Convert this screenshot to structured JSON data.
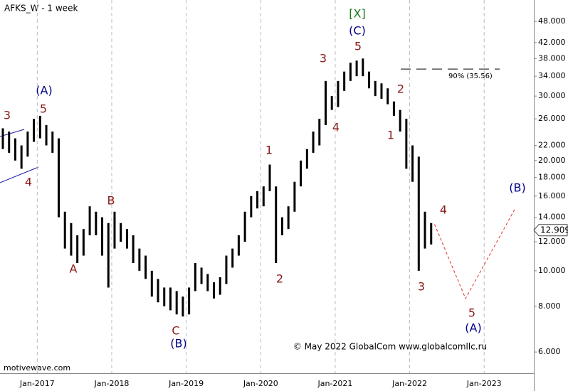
{
  "chart_data": {
    "type": "ohlc",
    "title": "AFKS_W - 1 week",
    "watermark": "motivewave.com",
    "copyright": "© May 2022 GlobalCom www.globalcomllc.ru",
    "color": "#000000",
    "log_scale": true,
    "grid": true,
    "x": [
      "2016-07",
      "2016-08",
      "2016-09",
      "2016-10",
      "2016-11",
      "2016-12",
      "2017-01",
      "2017-02",
      "2017-03",
      "2017-04",
      "2017-05",
      "2017-06",
      "2017-07",
      "2017-08",
      "2017-09",
      "2017-10",
      "2017-11",
      "2017-12",
      "2018-01",
      "2018-02",
      "2018-03",
      "2018-04",
      "2018-05",
      "2018-06",
      "2018-07",
      "2018-08",
      "2018-09",
      "2018-10",
      "2018-11",
      "2018-12",
      "2019-01",
      "2019-02",
      "2019-03",
      "2019-04",
      "2019-05",
      "2019-06",
      "2019-07",
      "2019-08",
      "2019-09",
      "2019-10",
      "2019-11",
      "2019-12",
      "2020-01",
      "2020-02",
      "2020-03",
      "2020-04",
      "2020-05",
      "2020-06",
      "2020-07",
      "2020-08",
      "2020-09",
      "2020-10",
      "2020-11",
      "2020-12",
      "2021-01",
      "2021-02",
      "2021-03",
      "2021-04",
      "2021-05",
      "2021-06",
      "2021-07",
      "2021-08",
      "2021-09",
      "2021-10",
      "2021-11",
      "2021-12",
      "2022-01",
      "2022-02",
      "2022-03",
      "2022-04"
    ],
    "high": [
      24.5,
      24,
      23,
      22,
      24,
      26,
      26.5,
      25,
      24,
      23,
      14.5,
      13.5,
      12.5,
      13,
      15,
      14.5,
      14,
      13.5,
      14.5,
      13.5,
      13,
      12.5,
      11.5,
      11,
      10,
      9.5,
      9,
      9,
      8.8,
      8.5,
      9,
      10.5,
      10.2,
      9.8,
      9.3,
      9.6,
      11,
      11.5,
      12.5,
      14.5,
      16,
      16.5,
      17,
      19.5,
      17,
      14,
      15,
      17.5,
      20,
      21.5,
      24,
      26,
      33,
      30,
      33,
      35,
      37,
      37.5,
      38,
      35,
      33,
      32.5,
      31.5,
      29,
      27.5,
      26,
      22,
      20.5,
      14.5,
      13.5
    ],
    "low": [
      21.5,
      21,
      20,
      19,
      20.5,
      22.5,
      23,
      22,
      21,
      14,
      11.5,
      11,
      10.5,
      11,
      12.5,
      12.5,
      11,
      9,
      11.5,
      12,
      11.5,
      10.5,
      10,
      9.5,
      8.5,
      8.2,
      8,
      7.8,
      7.6,
      7.5,
      7.6,
      8.8,
      9.2,
      8.8,
      8.4,
      8.6,
      9.2,
      10.2,
      11,
      12,
      14,
      14.8,
      15,
      16.5,
      10.5,
      12.5,
      13,
      14.5,
      17,
      19,
      21,
      22,
      25,
      27.5,
      28,
      31,
      33,
      34,
      34,
      31.5,
      30,
      29.5,
      28.5,
      26.5,
      24,
      19,
      17.5,
      10,
      11.5,
      11.8
    ],
    "projection": {
      "color": "#e83030",
      "x": [
        "2022-05",
        "2022-10",
        "2023-06"
      ],
      "values": [
        13.4,
        8.4,
        14.8
      ]
    },
    "last_price": 12.909,
    "retracement": {
      "label": "90% (35.56)",
      "value": 35.56
    },
    "xlim": [
      "2016-07",
      "2023-09"
    ],
    "xticks": [
      {
        "value": "2017-01",
        "label": "Jan-2017"
      },
      {
        "value": "2018-01",
        "label": "Jan-2018"
      },
      {
        "value": "2019-01",
        "label": "Jan-2019"
      },
      {
        "value": "2020-01",
        "label": "Jan-2020"
      },
      {
        "value": "2021-01",
        "label": "Jan-2021"
      },
      {
        "value": "2022-01",
        "label": "Jan-2022"
      },
      {
        "value": "2023-01",
        "label": "Jan-2023"
      }
    ],
    "ylim": [
      5.25,
      54.9
    ],
    "yticks": [
      {
        "value": 6,
        "label": "6.000"
      },
      {
        "value": 8,
        "label": "8.000"
      },
      {
        "value": 10,
        "label": "10.000"
      },
      {
        "value": 12,
        "label": "12.000"
      },
      {
        "value": 14,
        "label": "14.000"
      },
      {
        "value": 16,
        "label": "16.000"
      },
      {
        "value": 18,
        "label": "18.000"
      },
      {
        "value": 20,
        "label": "20.000"
      },
      {
        "value": 22,
        "label": "22.000"
      },
      {
        "value": 26,
        "label": "26.000"
      },
      {
        "value": 30,
        "label": "30.000"
      },
      {
        "value": 34,
        "label": "34.000"
      },
      {
        "value": 38,
        "label": "38.000"
      },
      {
        "value": 42,
        "label": "42.000"
      },
      {
        "value": 48,
        "label": "48.000"
      }
    ],
    "annotations": [
      {
        "text": "3",
        "color": "#8b1a1a"
      },
      {
        "text": "5",
        "color": "#8b1a1a"
      },
      {
        "text": "(A)",
        "color": "#00008b"
      },
      {
        "text": "4",
        "color": "#8b1a1a"
      },
      {
        "text": "A",
        "color": "#8b1a1a"
      },
      {
        "text": "B",
        "color": "#8b1a1a"
      },
      {
        "text": "C",
        "color": "#8b1a1a"
      },
      {
        "text": "(B)",
        "color": "#00008b"
      },
      {
        "text": "1",
        "color": "#8b1a1a"
      },
      {
        "text": "2",
        "color": "#8b1a1a"
      },
      {
        "text": "3",
        "color": "#8b1a1a"
      },
      {
        "text": "4",
        "color": "#8b1a1a"
      },
      {
        "text": "5",
        "color": "#8b1a1a"
      },
      {
        "text": "(C)",
        "color": "#00008b"
      },
      {
        "text": "[X]",
        "color": "#1a7a1a"
      },
      {
        "text": "2",
        "color": "#8b1a1a"
      },
      {
        "text": "1",
        "color": "#8b1a1a"
      },
      {
        "text": "3",
        "color": "#8b1a1a"
      },
      {
        "text": "4",
        "color": "#8b1a1a"
      },
      {
        "text": "5",
        "color": "#8b1a1a"
      },
      {
        "text": "(A)",
        "color": "#00008b"
      },
      {
        "text": "(B)",
        "color": "#00008b"
      }
    ]
  }
}
